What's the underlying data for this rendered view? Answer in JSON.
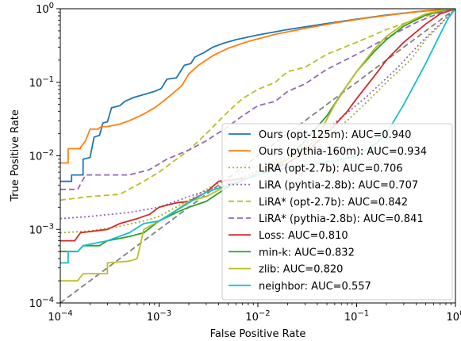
{
  "chart_data": {
    "type": "line",
    "title": "",
    "xlabel": "False Positive Rate",
    "ylabel": "True Positive Rate",
    "xscale": "log",
    "yscale": "log",
    "xlim": [
      0.0001,
      1
    ],
    "ylim": [
      0.0001,
      1
    ],
    "x_ticks": [
      {
        "value": 0.0001,
        "base": "10",
        "exp": "−4"
      },
      {
        "value": 0.001,
        "base": "10",
        "exp": "−3"
      },
      {
        "value": 0.01,
        "base": "10",
        "exp": "−2"
      },
      {
        "value": 0.1,
        "base": "10",
        "exp": "−1"
      },
      {
        "value": 1,
        "base": "10",
        "exp": "0"
      }
    ],
    "y_ticks": [
      {
        "value": 0.0001,
        "base": "10",
        "exp": "−4"
      },
      {
        "value": 0.001,
        "base": "10",
        "exp": "−3"
      },
      {
        "value": 0.01,
        "base": "10",
        "exp": "−2"
      },
      {
        "value": 0.1,
        "base": "10",
        "exp": "−1"
      },
      {
        "value": 1,
        "base": "10",
        "exp": "0"
      }
    ],
    "grid": false,
    "legend_position": "lower-right",
    "diagonal": {
      "color": "#808080",
      "style": "dashed"
    },
    "series": [
      {
        "name": "Ours (opt-125m): AUC=0.940",
        "color": "#1f77b4",
        "dash": "solid",
        "points": [
          [
            0.0001,
            0.0045
          ],
          [
            0.00013,
            0.0045
          ],
          [
            0.00013,
            0.0055
          ],
          [
            0.00017,
            0.0055
          ],
          [
            0.00017,
            0.009
          ],
          [
            0.0002,
            0.0095
          ],
          [
            0.00022,
            0.018
          ],
          [
            0.00025,
            0.019
          ],
          [
            0.00027,
            0.028
          ],
          [
            0.0003,
            0.029
          ],
          [
            0.00033,
            0.045
          ],
          [
            0.0004,
            0.048
          ],
          [
            0.00045,
            0.055
          ],
          [
            0.00055,
            0.062
          ],
          [
            0.0007,
            0.068
          ],
          [
            0.0009,
            0.075
          ],
          [
            0.00105,
            0.082
          ],
          [
            0.0012,
            0.11
          ],
          [
            0.0015,
            0.115
          ],
          [
            0.0018,
            0.17
          ],
          [
            0.0021,
            0.18
          ],
          [
            0.0023,
            0.22
          ],
          [
            0.0028,
            0.25
          ],
          [
            0.0035,
            0.3
          ],
          [
            0.0045,
            0.34
          ],
          [
            0.006,
            0.38
          ],
          [
            0.01,
            0.44
          ],
          [
            0.02,
            0.52
          ],
          [
            0.05,
            0.63
          ],
          [
            0.1,
            0.72
          ],
          [
            0.2,
            0.82
          ],
          [
            0.4,
            0.91
          ],
          [
            0.7,
            0.97
          ],
          [
            1,
            1
          ]
        ]
      },
      {
        "name": "Ours (pythia-160m): AUC=0.934",
        "color": "#ff7f0e",
        "dash": "solid",
        "points": [
          [
            0.0001,
            0.008
          ],
          [
            0.00012,
            0.008
          ],
          [
            0.00012,
            0.0125
          ],
          [
            0.00016,
            0.0125
          ],
          [
            0.00016,
            0.013
          ],
          [
            0.00018,
            0.016
          ],
          [
            0.0002,
            0.023
          ],
          [
            0.00024,
            0.023
          ],
          [
            0.00026,
            0.025
          ],
          [
            0.0003,
            0.025
          ],
          [
            0.0004,
            0.027
          ],
          [
            0.0005,
            0.03
          ],
          [
            0.0007,
            0.037
          ],
          [
            0.0009,
            0.045
          ],
          [
            0.0011,
            0.055
          ],
          [
            0.0014,
            0.072
          ],
          [
            0.0017,
            0.09
          ],
          [
            0.002,
            0.13
          ],
          [
            0.0025,
            0.17
          ],
          [
            0.0035,
            0.23
          ],
          [
            0.005,
            0.29
          ],
          [
            0.008,
            0.36
          ],
          [
            0.015,
            0.45
          ],
          [
            0.03,
            0.54
          ],
          [
            0.06,
            0.64
          ],
          [
            0.12,
            0.74
          ],
          [
            0.25,
            0.84
          ],
          [
            0.5,
            0.94
          ],
          [
            1,
            1
          ]
        ]
      },
      {
        "name": "LiRA (opt-2.7b): AUC=0.706",
        "color": "#9bb32f",
        "dash": "dotted",
        "points": [
          [
            0.0001,
            0.0009
          ],
          [
            0.0002,
            0.00095
          ],
          [
            0.0004,
            0.0011
          ],
          [
            0.0007,
            0.0013
          ],
          [
            0.001,
            0.0015
          ],
          [
            0.002,
            0.0025
          ],
          [
            0.003,
            0.0035
          ],
          [
            0.005,
            0.005
          ],
          [
            0.008,
            0.0065
          ],
          [
            0.012,
            0.008
          ],
          [
            0.018,
            0.0095
          ],
          [
            0.025,
            0.012
          ],
          [
            0.05,
            0.018
          ],
          [
            0.08,
            0.03
          ],
          [
            0.12,
            0.05
          ],
          [
            0.2,
            0.1
          ],
          [
            0.35,
            0.2
          ],
          [
            0.5,
            0.38
          ],
          [
            0.7,
            0.6
          ],
          [
            1,
            1
          ]
        ]
      },
      {
        "name": "LiRA (pyhtia-2.8b): AUC=0.707",
        "color": "#9467bd",
        "dash": "dotted",
        "points": [
          [
            0.0001,
            0.0014
          ],
          [
            0.0002,
            0.0015
          ],
          [
            0.0005,
            0.0017
          ],
          [
            0.001,
            0.002
          ],
          [
            0.002,
            0.0028
          ],
          [
            0.004,
            0.0038
          ],
          [
            0.008,
            0.0055
          ],
          [
            0.015,
            0.008
          ],
          [
            0.03,
            0.014
          ],
          [
            0.06,
            0.028
          ],
          [
            0.12,
            0.06
          ],
          [
            0.25,
            0.15
          ],
          [
            0.45,
            0.35
          ],
          [
            0.7,
            0.62
          ],
          [
            1,
            1
          ]
        ]
      },
      {
        "name": "LiRA* (opt-2.7b): AUC=0.842",
        "color": "#bcbd22",
        "dash": "dashed",
        "points": [
          [
            0.0001,
            0.0025
          ],
          [
            0.0002,
            0.0028
          ],
          [
            0.0004,
            0.003
          ],
          [
            0.0007,
            0.0045
          ],
          [
            0.001,
            0.006
          ],
          [
            0.0015,
            0.009
          ],
          [
            0.002,
            0.012
          ],
          [
            0.003,
            0.02
          ],
          [
            0.005,
            0.04
          ],
          [
            0.007,
            0.06
          ],
          [
            0.01,
            0.08
          ],
          [
            0.015,
            0.1
          ],
          [
            0.02,
            0.14
          ],
          [
            0.03,
            0.16
          ],
          [
            0.05,
            0.24
          ],
          [
            0.1,
            0.35
          ],
          [
            0.2,
            0.52
          ],
          [
            0.4,
            0.72
          ],
          [
            0.7,
            0.9
          ],
          [
            1,
            1
          ]
        ]
      },
      {
        "name": "LiRA* (pythia-2.8b): AUC=0.841",
        "color": "#9467bd",
        "dash": "dashed",
        "points": [
          [
            0.0001,
            0.0035
          ],
          [
            0.00015,
            0.0035
          ],
          [
            0.00018,
            0.0055
          ],
          [
            0.0003,
            0.0055
          ],
          [
            0.0005,
            0.0055
          ],
          [
            0.0008,
            0.0065
          ],
          [
            0.0012,
            0.009
          ],
          [
            0.002,
            0.012
          ],
          [
            0.003,
            0.016
          ],
          [
            0.005,
            0.025
          ],
          [
            0.007,
            0.035
          ],
          [
            0.01,
            0.048
          ],
          [
            0.015,
            0.055
          ],
          [
            0.02,
            0.075
          ],
          [
            0.03,
            0.095
          ],
          [
            0.05,
            0.15
          ],
          [
            0.1,
            0.24
          ],
          [
            0.2,
            0.4
          ],
          [
            0.4,
            0.65
          ],
          [
            0.7,
            0.88
          ],
          [
            1,
            1
          ]
        ]
      },
      {
        "name": "Loss: AUC=0.810",
        "color": "#d62728",
        "dash": "solid",
        "points": [
          [
            0.0001,
            0.0007
          ],
          [
            0.00014,
            0.0007
          ],
          [
            0.00016,
            0.0009
          ],
          [
            0.0003,
            0.001
          ],
          [
            0.0004,
            0.0012
          ],
          [
            0.0006,
            0.0014
          ],
          [
            0.0008,
            0.0016
          ],
          [
            0.001,
            0.002
          ],
          [
            0.0015,
            0.0023
          ],
          [
            0.002,
            0.0024
          ],
          [
            0.003,
            0.0032
          ],
          [
            0.004,
            0.0045
          ],
          [
            0.006,
            0.0048
          ],
          [
            0.008,
            0.005
          ],
          [
            0.012,
            0.006
          ],
          [
            0.02,
            0.008
          ],
          [
            0.03,
            0.011
          ],
          [
            0.05,
            0.02
          ],
          [
            0.08,
            0.04
          ],
          [
            0.1,
            0.06
          ],
          [
            0.15,
            0.12
          ],
          [
            0.2,
            0.2
          ],
          [
            0.3,
            0.35
          ],
          [
            0.5,
            0.62
          ],
          [
            0.7,
            0.85
          ],
          [
            1,
            1
          ]
        ]
      },
      {
        "name": "min-k: AUC=0.832",
        "color": "#2ca02c",
        "dash": "solid",
        "points": [
          [
            0.0001,
            0.0005
          ],
          [
            0.00015,
            0.0005
          ],
          [
            0.00017,
            0.0006
          ],
          [
            0.00025,
            0.0006
          ],
          [
            0.0003,
            0.0007
          ],
          [
            0.0005,
            0.0008
          ],
          [
            0.0007,
            0.0009
          ],
          [
            0.001,
            0.0013
          ],
          [
            0.0015,
            0.0017
          ],
          [
            0.002,
            0.002
          ],
          [
            0.003,
            0.0024
          ],
          [
            0.005,
            0.0038
          ],
          [
            0.008,
            0.005
          ],
          [
            0.012,
            0.006
          ],
          [
            0.02,
            0.009
          ],
          [
            0.03,
            0.016
          ],
          [
            0.05,
            0.035
          ],
          [
            0.07,
            0.07
          ],
          [
            0.1,
            0.14
          ],
          [
            0.15,
            0.26
          ],
          [
            0.2,
            0.38
          ],
          [
            0.3,
            0.58
          ],
          [
            0.5,
            0.82
          ],
          [
            0.8,
            0.97
          ],
          [
            1,
            1
          ]
        ]
      },
      {
        "name": "zlib: AUC=0.820",
        "color": "#bcbd22",
        "dash": "solid",
        "points": [
          [
            0.0001,
            0.0002
          ],
          [
            0.00015,
            0.0002
          ],
          [
            0.00017,
            0.00025
          ],
          [
            0.0003,
            0.00025
          ],
          [
            0.0003,
            0.00035
          ],
          [
            0.0005,
            0.00037
          ],
          [
            0.0006,
            0.0004
          ],
          [
            0.0007,
            0.001
          ],
          [
            0.0009,
            0.0012
          ],
          [
            0.0012,
            0.0015
          ],
          [
            0.002,
            0.0024
          ],
          [
            0.003,
            0.0028
          ],
          [
            0.005,
            0.004
          ],
          [
            0.008,
            0.005
          ],
          [
            0.012,
            0.007
          ],
          [
            0.02,
            0.009
          ],
          [
            0.03,
            0.012
          ],
          [
            0.04,
            0.018
          ],
          [
            0.06,
            0.05
          ],
          [
            0.08,
            0.09
          ],
          [
            0.1,
            0.14
          ],
          [
            0.15,
            0.28
          ],
          [
            0.2,
            0.42
          ],
          [
            0.3,
            0.62
          ],
          [
            0.5,
            0.85
          ],
          [
            0.8,
            0.98
          ],
          [
            1,
            1
          ]
        ]
      },
      {
        "name": "neighbor: AUC=0.557",
        "color": "#17becf",
        "dash": "solid",
        "points": [
          [
            0.0001,
            0.00035
          ],
          [
            0.00012,
            0.00035
          ],
          [
            0.00012,
            0.0005
          ],
          [
            0.00015,
            0.0005
          ],
          [
            0.00017,
            0.0006
          ],
          [
            0.0003,
            0.0007
          ],
          [
            0.0005,
            0.0009
          ],
          [
            0.0007,
            0.0012
          ],
          [
            0.001,
            0.0013
          ],
          [
            0.002,
            0.0023
          ],
          [
            0.003,
            0.0032
          ],
          [
            0.005,
            0.004
          ],
          [
            0.008,
            0.005
          ],
          [
            0.012,
            0.006
          ],
          [
            0.02,
            0.007
          ],
          [
            0.04,
            0.008
          ],
          [
            0.06,
            0.0085
          ],
          [
            0.1,
            0.01
          ],
          [
            0.15,
            0.014
          ],
          [
            0.2,
            0.02
          ],
          [
            0.3,
            0.05
          ],
          [
            0.5,
            0.18
          ],
          [
            0.7,
            0.45
          ],
          [
            0.85,
            0.75
          ],
          [
            1,
            1
          ]
        ]
      }
    ]
  }
}
